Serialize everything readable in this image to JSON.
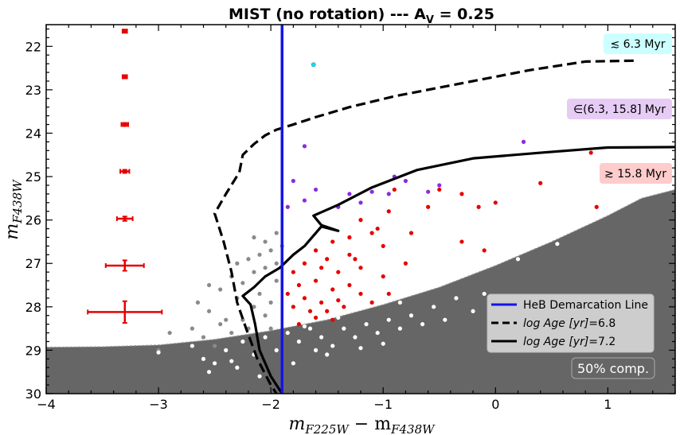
{
  "chart_data": {
    "type": "scatter",
    "title": "MIST (no rotation) --- A",
    "title_sub": "V",
    "title_tail": " = 0.25",
    "xlabel_main": "m",
    "xlabel_sub1": "F225W",
    "xlabel_mid": " − m",
    "xlabel_sub2": "F438W",
    "ylabel_main": "m",
    "ylabel_sub": "F438W",
    "xlim": [
      -4,
      1.6
    ],
    "ylim": [
      30,
      21.5
    ],
    "y_inverted": true,
    "xticks": [
      -4,
      -3,
      -2,
      -1,
      0,
      1
    ],
    "xtick_labels": [
      "−4",
      "−3",
      "−2",
      "−1",
      "0",
      "1"
    ],
    "yticks": [
      22,
      23,
      24,
      25,
      26,
      27,
      28,
      29,
      30
    ],
    "ytick_labels": [
      "22",
      "23",
      "24",
      "25",
      "26",
      "27",
      "28",
      "29",
      "30"
    ],
    "colors": {
      "shade": "#666666",
      "heb_line": "#1414e6",
      "red": "#e60000",
      "purple": "#8a2be2",
      "gray": "#8a8a8a",
      "white": "#ffffff",
      "cyan": "#00e5ff",
      "box_cyan": "#ccffff",
      "box_purple": "#e6ccf5",
      "box_red": "#ffcccc"
    },
    "age_labels": [
      {
        "text": "≲ 6.3 Myr",
        "color_key": "box_cyan"
      },
      {
        "text": "∈(6.3, 15.8] Myr",
        "color_key": "box_purple"
      },
      {
        "text": "≳ 15.8 Myr",
        "color_key": "box_red"
      }
    ],
    "legend": {
      "placement": "lower-right",
      "entries": [
        {
          "label": "HeB Demarcation Line",
          "style": "solid-blue"
        },
        {
          "label_it": "log Age [yr]",
          "label_tail": "=6.8",
          "style": "dashed-black"
        },
        {
          "label_it": "log Age [yr]",
          "label_tail": "=7.2",
          "style": "solid-black"
        }
      ]
    },
    "completeness_label": "50% comp.",
    "heb_demarcation_x": -1.9,
    "completeness_curve": [
      [
        -4.0,
        28.93
      ],
      [
        -3.5,
        28.92
      ],
      [
        -3.0,
        28.88
      ],
      [
        -2.5,
        28.75
      ],
      [
        -2.0,
        28.55
      ],
      [
        -1.5,
        28.3
      ],
      [
        -1.0,
        27.95
      ],
      [
        -0.5,
        27.55
      ],
      [
        0.0,
        27.05
      ],
      [
        0.5,
        26.5
      ],
      [
        1.0,
        25.9
      ],
      [
        1.3,
        25.5
      ],
      [
        1.6,
        25.3
      ]
    ],
    "isochrone_68": [
      [
        1.23,
        22.33
      ],
      [
        0.8,
        22.35
      ],
      [
        0.3,
        22.55
      ],
      [
        -0.3,
        22.85
      ],
      [
        -0.9,
        23.15
      ],
      [
        -1.3,
        23.4
      ],
      [
        -1.6,
        23.63
      ],
      [
        -1.8,
        23.8
      ],
      [
        -1.95,
        23.92
      ],
      [
        -2.05,
        24.05
      ],
      [
        -2.15,
        24.25
      ],
      [
        -2.25,
        24.5
      ],
      [
        -2.28,
        24.9
      ],
      [
        -2.4,
        25.4
      ],
      [
        -2.5,
        25.85
      ],
      [
        -2.42,
        26.5
      ],
      [
        -2.35,
        27.2
      ],
      [
        -2.3,
        27.9
      ],
      [
        -2.22,
        28.5
      ],
      [
        -2.12,
        29.2
      ],
      [
        -2.0,
        29.8
      ],
      [
        -1.95,
        30.0
      ]
    ],
    "isochrone_72": [
      [
        1.6,
        24.32
      ],
      [
        1.0,
        24.33
      ],
      [
        0.4,
        24.45
      ],
      [
        -0.2,
        24.58
      ],
      [
        -0.7,
        24.85
      ],
      [
        -1.1,
        25.25
      ],
      [
        -1.4,
        25.65
      ],
      [
        -1.62,
        25.9
      ],
      [
        -1.55,
        26.12
      ],
      [
        -1.4,
        26.25
      ],
      [
        -1.55,
        26.15
      ],
      [
        -1.7,
        26.6
      ],
      [
        -1.8,
        26.8
      ],
      [
        -1.92,
        27.1
      ],
      [
        -2.05,
        27.3
      ],
      [
        -2.15,
        27.55
      ],
      [
        -2.25,
        27.75
      ],
      [
        -2.18,
        27.95
      ],
      [
        -2.14,
        28.4
      ],
      [
        -2.1,
        29.0
      ],
      [
        -2.0,
        29.6
      ],
      [
        -1.9,
        30.0
      ]
    ],
    "error_bars": [
      {
        "x": -3.3,
        "y": 21.65,
        "xerr": 0.02,
        "yerr": 0.02
      },
      {
        "x": -3.3,
        "y": 22.7,
        "xerr": 0.02,
        "yerr": 0.02
      },
      {
        "x": -3.3,
        "y": 23.8,
        "xerr": 0.03,
        "yerr": 0.02
      },
      {
        "x": -3.3,
        "y": 24.88,
        "xerr": 0.04,
        "yerr": 0.03
      },
      {
        "x": -3.3,
        "y": 25.97,
        "xerr": 0.07,
        "yerr": 0.05
      },
      {
        "x": -3.3,
        "y": 27.05,
        "xerr": 0.17,
        "yerr": 0.12
      },
      {
        "x": -3.3,
        "y": 28.12,
        "xerr": 0.33,
        "yerr": 0.25
      }
    ],
    "series": [
      {
        "name": "cyan",
        "color_key": "cyan",
        "points": [
          [
            -1.62,
            22.42
          ]
        ]
      },
      {
        "name": "purple",
        "color_key": "purple",
        "points": [
          [
            -1.7,
            24.3
          ],
          [
            -1.8,
            25.1
          ],
          [
            -1.6,
            25.3
          ],
          [
            -1.3,
            25.4
          ],
          [
            -1.1,
            25.35
          ],
          [
            -0.9,
            25.0
          ],
          [
            -0.8,
            25.1
          ],
          [
            -0.5,
            25.2
          ],
          [
            -1.2,
            25.6
          ],
          [
            -1.7,
            25.55
          ],
          [
            -1.4,
            25.7
          ],
          [
            -1.85,
            25.7
          ],
          [
            0.25,
            24.2
          ],
          [
            -0.95,
            25.4
          ],
          [
            -0.6,
            25.35
          ]
        ]
      },
      {
        "name": "red",
        "color_key": "red",
        "points": [
          [
            -0.9,
            25.3
          ],
          [
            -0.5,
            25.3
          ],
          [
            -0.3,
            25.4
          ],
          [
            -0.15,
            25.7
          ],
          [
            0.0,
            25.6
          ],
          [
            0.4,
            25.15
          ],
          [
            0.85,
            24.45
          ],
          [
            0.9,
            25.7
          ],
          [
            -0.6,
            25.7
          ],
          [
            -0.95,
            25.8
          ],
          [
            -0.75,
            26.3
          ],
          [
            -0.3,
            26.5
          ],
          [
            -0.1,
            26.7
          ],
          [
            -1.2,
            26.0
          ],
          [
            -1.1,
            26.3
          ],
          [
            -1.3,
            26.4
          ],
          [
            -1.0,
            26.6
          ],
          [
            -1.45,
            26.5
          ],
          [
            -1.5,
            26.9
          ],
          [
            -1.3,
            26.8
          ],
          [
            -1.6,
            26.7
          ],
          [
            -1.7,
            27.0
          ],
          [
            -1.55,
            27.1
          ],
          [
            -1.4,
            27.2
          ],
          [
            -1.2,
            27.1
          ],
          [
            -1.0,
            27.3
          ],
          [
            -0.8,
            27.0
          ],
          [
            -1.8,
            27.2
          ],
          [
            -1.75,
            27.5
          ],
          [
            -1.6,
            27.4
          ],
          [
            -1.45,
            27.6
          ],
          [
            -1.3,
            27.5
          ],
          [
            -1.85,
            27.7
          ],
          [
            -1.7,
            27.8
          ],
          [
            -1.55,
            27.9
          ],
          [
            -1.4,
            27.85
          ],
          [
            -1.2,
            27.7
          ],
          [
            -1.1,
            27.9
          ],
          [
            -1.8,
            28.0
          ],
          [
            -1.65,
            28.1
          ],
          [
            -1.5,
            28.1
          ],
          [
            -1.35,
            28.0
          ],
          [
            -1.6,
            28.25
          ],
          [
            -1.45,
            28.3
          ],
          [
            -1.75,
            28.4
          ],
          [
            -1.25,
            26.9
          ],
          [
            -0.95,
            27.7
          ],
          [
            -1.05,
            26.2
          ]
        ]
      },
      {
        "name": "gray",
        "color_key": "gray",
        "points": [
          [
            -2.65,
            27.9
          ],
          [
            -2.55,
            28.1
          ],
          [
            -2.45,
            27.6
          ],
          [
            -2.4,
            28.3
          ],
          [
            -2.35,
            27.3
          ],
          [
            -2.3,
            27.0
          ],
          [
            -2.25,
            27.45
          ],
          [
            -2.2,
            26.9
          ],
          [
            -2.15,
            27.2
          ],
          [
            -2.1,
            27.7
          ],
          [
            -2.05,
            26.5
          ],
          [
            -2.0,
            26.7
          ],
          [
            -1.95,
            27.0
          ],
          [
            -1.95,
            27.4
          ],
          [
            -2.0,
            27.9
          ],
          [
            -2.05,
            28.2
          ],
          [
            -2.15,
            28.0
          ],
          [
            -2.25,
            28.3
          ],
          [
            -2.35,
            28.6
          ],
          [
            -2.45,
            28.4
          ],
          [
            -2.6,
            28.7
          ],
          [
            -2.7,
            28.5
          ],
          [
            -2.9,
            28.6
          ],
          [
            -3.0,
            29.0
          ],
          [
            -2.5,
            28.9
          ],
          [
            -1.9,
            26.6
          ],
          [
            -1.95,
            26.3
          ],
          [
            -2.1,
            26.8
          ],
          [
            -2.3,
            27.8
          ],
          [
            -2.2,
            28.5
          ],
          [
            -2.0,
            28.5
          ],
          [
            -2.55,
            27.5
          ],
          [
            -2.15,
            26.4
          ],
          [
            -2.05,
            27.1
          ]
        ]
      },
      {
        "name": "white",
        "color_key": "white",
        "points": [
          [
            -3.0,
            29.05
          ],
          [
            -2.7,
            28.9
          ],
          [
            -2.6,
            29.2
          ],
          [
            -2.5,
            29.3
          ],
          [
            -2.4,
            29.0
          ],
          [
            -2.25,
            28.8
          ],
          [
            -2.15,
            29.1
          ],
          [
            -2.05,
            28.7
          ],
          [
            -1.95,
            29.0
          ],
          [
            -1.85,
            28.6
          ],
          [
            -1.75,
            28.8
          ],
          [
            -1.65,
            28.5
          ],
          [
            -1.55,
            28.7
          ],
          [
            -1.45,
            28.9
          ],
          [
            -1.35,
            28.5
          ],
          [
            -1.25,
            28.7
          ],
          [
            -1.15,
            28.4
          ],
          [
            -1.05,
            28.6
          ],
          [
            -0.95,
            28.3
          ],
          [
            -0.85,
            28.5
          ],
          [
            -0.75,
            28.2
          ],
          [
            -0.65,
            28.4
          ],
          [
            -0.55,
            28.0
          ],
          [
            -0.45,
            28.3
          ],
          [
            -0.35,
            27.8
          ],
          [
            -0.2,
            28.1
          ],
          [
            -0.1,
            27.7
          ],
          [
            0.2,
            26.9
          ],
          [
            0.55,
            26.55
          ],
          [
            -2.55,
            29.5
          ],
          [
            -2.1,
            29.6
          ],
          [
            -1.8,
            29.3
          ],
          [
            -1.5,
            29.1
          ],
          [
            -1.2,
            28.95
          ],
          [
            -2.3,
            29.4
          ],
          [
            -1.9,
            28.3
          ],
          [
            -1.7,
            28.45
          ],
          [
            -1.4,
            28.25
          ],
          [
            -0.85,
            27.9
          ],
          [
            -1.0,
            28.85
          ],
          [
            -2.35,
            29.25
          ],
          [
            -1.6,
            29.0
          ]
        ]
      }
    ]
  }
}
